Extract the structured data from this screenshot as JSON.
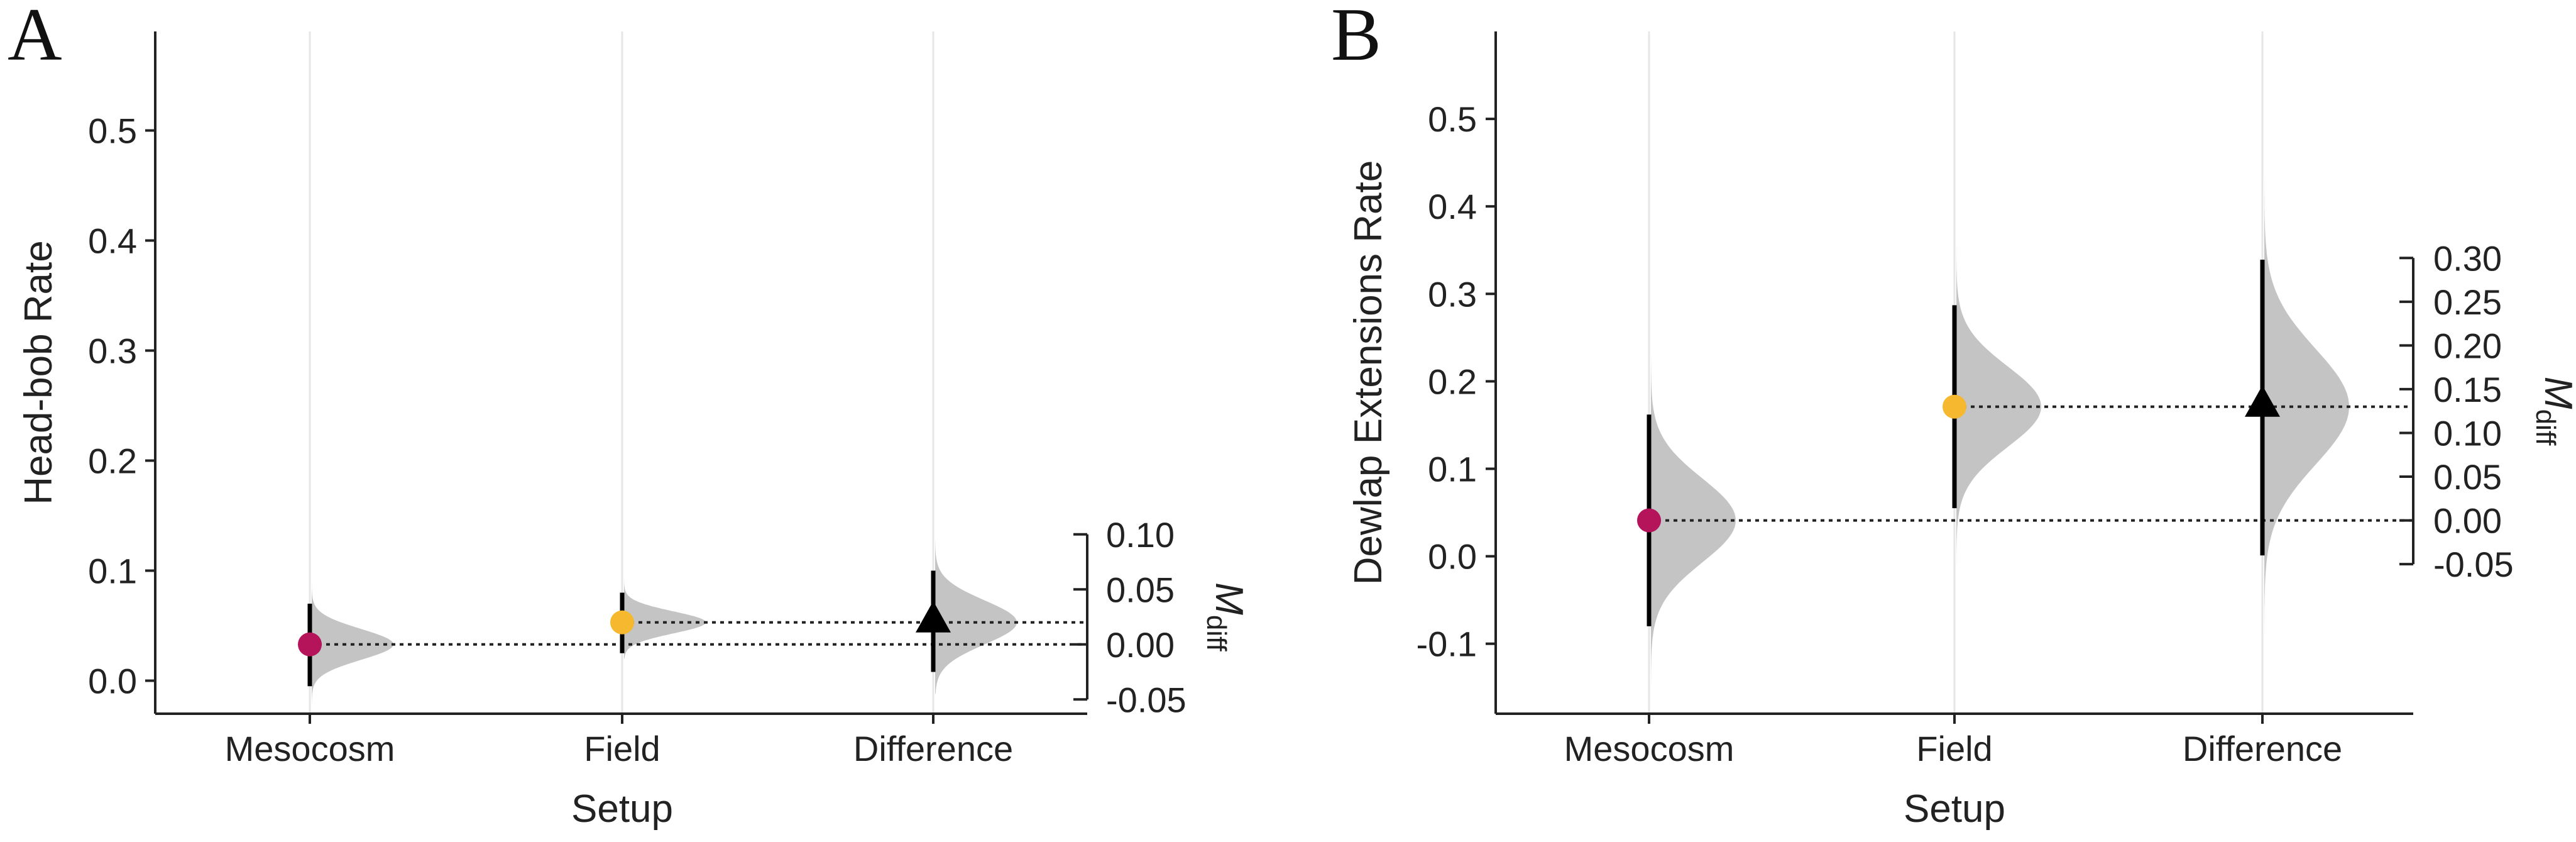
{
  "chart_data": [
    {
      "type": "estimation-plot",
      "panel_label": "A",
      "xlabel": "Setup",
      "ylabel": "Head-bob Rate",
      "categories": [
        "Mesocosm",
        "Field",
        "Difference"
      ],
      "ylim": [
        -0.03,
        0.59
      ],
      "yticks": [
        0.0,
        0.1,
        0.2,
        0.3,
        0.4,
        0.5
      ],
      "ytick_labels": [
        "0.0",
        "0.1",
        "0.2",
        "0.3",
        "0.4",
        "0.5"
      ],
      "diff_axis_label": "M",
      "diff_axis_subscript": "diff",
      "diff_ticks": [
        0.1,
        0.05,
        0.0,
        -0.05
      ],
      "diff_tick_labels": [
        "0.10",
        "0.05",
        "0.00",
        "-0.05"
      ],
      "diff_zero_at": 0.033,
      "groups": [
        {
          "name": "Mesocosm",
          "mean": 0.033,
          "ci": [
            -0.005,
            0.07
          ],
          "dist_sd": 0.014,
          "dist_range": [
            -0.03,
            0.09
          ],
          "marker": "circle",
          "color": "#B5145B"
        },
        {
          "name": "Field",
          "mean": 0.053,
          "ci": [
            0.025,
            0.08
          ],
          "dist_sd": 0.01,
          "dist_range": [
            0.02,
            0.1
          ],
          "marker": "circle",
          "color": "#F5B82E"
        }
      ],
      "difference": {
        "name": "Difference",
        "mean": 0.02,
        "ci": [
          -0.025,
          0.067
        ],
        "dist_sd": 0.02,
        "dist_range": [
          -0.045,
          0.095
        ],
        "marker": "triangle",
        "color": "#000000"
      }
    },
    {
      "type": "estimation-plot",
      "panel_label": "B",
      "xlabel": "Setup",
      "ylabel": "Dewlap Extensions Rate",
      "categories": [
        "Mesocosm",
        "Field",
        "Difference"
      ],
      "ylim": [
        -0.18,
        0.6
      ],
      "yticks": [
        -0.1,
        0.0,
        0.1,
        0.2,
        0.3,
        0.4,
        0.5
      ],
      "ytick_labels": [
        "-0.1",
        "0.0",
        "0.1",
        "0.2",
        "0.3",
        "0.4",
        "0.5"
      ],
      "diff_axis_label": "M",
      "diff_axis_subscript": "diff",
      "diff_ticks": [
        0.3,
        0.25,
        0.2,
        0.15,
        0.1,
        0.05,
        0.0,
        -0.05
      ],
      "diff_tick_labels": [
        "0.30",
        "0.25",
        "0.20",
        "0.15",
        "0.10",
        "0.05",
        "0.00",
        "-0.05"
      ],
      "diff_zero_at": 0.041,
      "groups": [
        {
          "name": "Mesocosm",
          "mean": 0.041,
          "ci": [
            -0.08,
            0.162
          ],
          "dist_sd": 0.048,
          "dist_range": [
            -0.18,
            0.27
          ],
          "marker": "circle",
          "color": "#B5145B"
        },
        {
          "name": "Field",
          "mean": 0.171,
          "ci": [
            0.055,
            0.287
          ],
          "dist_sd": 0.046,
          "dist_range": [
            -0.03,
            0.37
          ],
          "marker": "circle",
          "color": "#F5B82E"
        }
      ],
      "difference": {
        "name": "Difference",
        "mean": 0.13,
        "ci": [
          -0.04,
          0.298
        ],
        "dist_sd": 0.066,
        "dist_range": [
          -0.22,
          0.51
        ],
        "marker": "triangle",
        "color": "#000000"
      }
    }
  ]
}
